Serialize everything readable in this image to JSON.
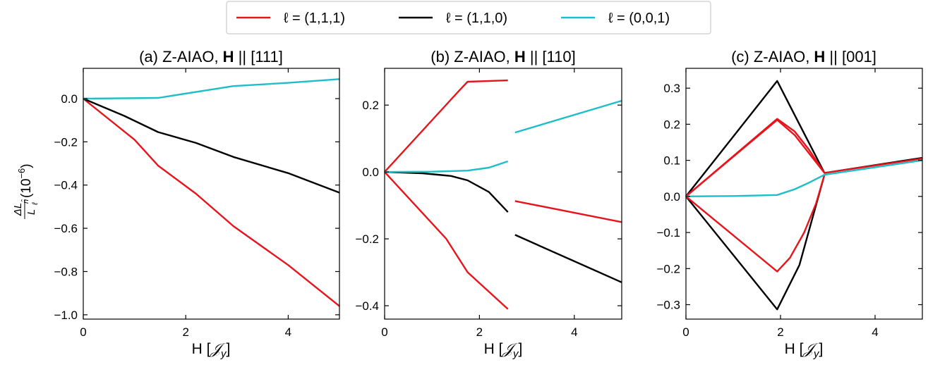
{
  "legend": {
    "placement": "top-center",
    "entries": [
      {
        "label": "ℓ = (1,1,1)",
        "color": "#e8141c"
      },
      {
        "label": "ℓ = (1,1,0)",
        "color": "#000000"
      },
      {
        "label": "ℓ = (0,0,1)",
        "color": "#1cbec8"
      }
    ]
  },
  "colors": {
    "l111": "#e8141c",
    "l110": "#000000",
    "l001": "#1cbec8"
  },
  "chart_data": [
    {
      "type": "line",
      "title": {
        "prefix": "(a) Z-AIAO, ",
        "bold": "H",
        "suffix": " || [111]"
      },
      "xlabel": {
        "main": "H [",
        "script": "𝒥",
        "sub": "y",
        "end": "]"
      },
      "ylabel": {
        "num": "ΔL",
        "den": "L",
        "sup": "n̂",
        "sub": "ℓ",
        "rest": "(10",
        "exp": "−6",
        "close": ")"
      },
      "xlim": [
        0,
        5
      ],
      "ylim": [
        -1.02,
        0.14
      ],
      "xticks": [
        0,
        2,
        4
      ],
      "xtick_labels": [
        "0",
        "2",
        "4"
      ],
      "yticks": [
        0.0,
        -0.2,
        -0.4,
        -0.6,
        -0.8,
        -1.0
      ],
      "ytick_labels": [
        "0.0",
        "−0.2",
        "−0.4",
        "−0.6",
        "−0.8",
        "−1.0"
      ],
      "series": [
        {
          "key": "l111",
          "segments": [
            [
              [
                0,
                0
              ],
              [
                1,
                -0.19
              ],
              [
                1.46,
                -0.31
              ],
              [
                2.2,
                -0.44
              ],
              [
                2.93,
                -0.59
              ],
              [
                4,
                -0.77
              ],
              [
                5,
                -0.96
              ]
            ]
          ]
        },
        {
          "key": "l110",
          "segments": [
            [
              [
                0,
                0
              ],
              [
                0.8,
                -0.08
              ],
              [
                1.46,
                -0.155
              ],
              [
                2.2,
                -0.205
              ],
              [
                2.93,
                -0.27
              ],
              [
                4,
                -0.345
              ],
              [
                5,
                -0.435
              ]
            ]
          ]
        },
        {
          "key": "l001",
          "segments": [
            [
              [
                0,
                0
              ],
              [
                1.46,
                0.003
              ],
              [
                2.93,
                0.058
              ],
              [
                4,
                0.073
              ],
              [
                5,
                0.09
              ]
            ]
          ]
        }
      ]
    },
    {
      "type": "line",
      "title": {
        "prefix": "(b) Z-AIAO, ",
        "bold": "H",
        "suffix": " || [110]"
      },
      "xlabel": {
        "main": "H [",
        "script": "𝒥",
        "sub": "y",
        "end": "]"
      },
      "xlim": [
        0,
        5
      ],
      "ylim": [
        -0.44,
        0.31
      ],
      "xticks": [
        0,
        2,
        4
      ],
      "xtick_labels": [
        "0",
        "2",
        "4"
      ],
      "yticks": [
        0.2,
        0.0,
        -0.2,
        -0.4
      ],
      "ytick_labels": [
        "0.2",
        "0.0",
        "−0.2",
        "−0.4"
      ],
      "series": [
        {
          "key": "l111",
          "segments": [
            [
              [
                0,
                0
              ],
              [
                1.55,
                0.24
              ],
              [
                1.75,
                0.27
              ],
              [
                2.6,
                0.274
              ]
            ],
            [
              [
                0,
                0
              ],
              [
                1.3,
                -0.2
              ],
              [
                1.75,
                -0.3
              ],
              [
                2.6,
                -0.41
              ]
            ],
            [
              [
                2.75,
                -0.087
              ],
              [
                5,
                -0.15
              ]
            ]
          ]
        },
        {
          "key": "l110",
          "segments": [
            [
              [
                0,
                0
              ],
              [
                0.8,
                -0.004
              ],
              [
                1.4,
                -0.012
              ],
              [
                1.75,
                -0.025
              ],
              [
                2.2,
                -0.06
              ],
              [
                2.6,
                -0.12
              ]
            ],
            [
              [
                2.75,
                -0.188
              ],
              [
                5,
                -0.33
              ]
            ]
          ]
        },
        {
          "key": "l001",
          "segments": [
            [
              [
                0,
                0
              ],
              [
                1.0,
                0.001
              ],
              [
                1.75,
                0.004
              ],
              [
                2.2,
                0.013
              ],
              [
                2.6,
                0.032
              ]
            ],
            [
              [
                2.75,
                0.118
              ],
              [
                5,
                0.213
              ]
            ]
          ]
        }
      ]
    },
    {
      "type": "line",
      "title": {
        "prefix": "(c) Z-AIAO, ",
        "bold": "H",
        "suffix": " || [001]"
      },
      "xlabel": {
        "main": "H [",
        "script": "𝒥",
        "sub": "y",
        "end": "]"
      },
      "xlim": [
        0,
        5
      ],
      "ylim": [
        -0.34,
        0.355
      ],
      "xticks": [
        0,
        2,
        4
      ],
      "xtick_labels": [
        "0",
        "2",
        "4"
      ],
      "yticks": [
        0.3,
        0.2,
        0.1,
        0.0,
        -0.1,
        -0.2,
        -0.3
      ],
      "ytick_labels": [
        "0.3",
        "0.2",
        "0.1",
        "0.0",
        "−0.1",
        "−0.2",
        "−0.3"
      ],
      "series": [
        {
          "key": "l110",
          "segments": [
            [
              [
                0,
                0
              ],
              [
                1.93,
                0.32
              ],
              [
                2.4,
                0.2
              ],
              [
                2.93,
                0.065
              ],
              [
                5,
                0.107
              ]
            ],
            [
              [
                0,
                0
              ],
              [
                1.93,
                -0.313
              ],
              [
                2.4,
                -0.19
              ],
              [
                2.93,
                0.06
              ]
            ]
          ]
        },
        {
          "key": "l111",
          "segments": [
            [
              [
                0,
                0
              ],
              [
                1.93,
                0.215
              ],
              [
                2.3,
                0.18
              ],
              [
                2.6,
                0.13
              ],
              [
                2.93,
                0.065
              ],
              [
                5,
                0.105
              ]
            ],
            [
              [
                0,
                0
              ],
              [
                1.93,
                0.212
              ],
              [
                2.3,
                0.17
              ],
              [
                2.6,
                0.12
              ],
              [
                2.93,
                0.065
              ]
            ],
            [
              [
                0,
                0
              ],
              [
                1.93,
                -0.208
              ],
              [
                2.2,
                -0.17
              ],
              [
                2.5,
                -0.1
              ],
              [
                2.75,
                -0.02
              ],
              [
                2.93,
                0.06
              ]
            ]
          ]
        },
        {
          "key": "l001",
          "segments": [
            [
              [
                0,
                0
              ],
              [
                1.0,
                0.001
              ],
              [
                1.93,
                0.004
              ],
              [
                2.3,
                0.02
              ],
              [
                2.6,
                0.038
              ],
              [
                2.93,
                0.06
              ],
              [
                5,
                0.1
              ]
            ]
          ]
        }
      ]
    }
  ]
}
